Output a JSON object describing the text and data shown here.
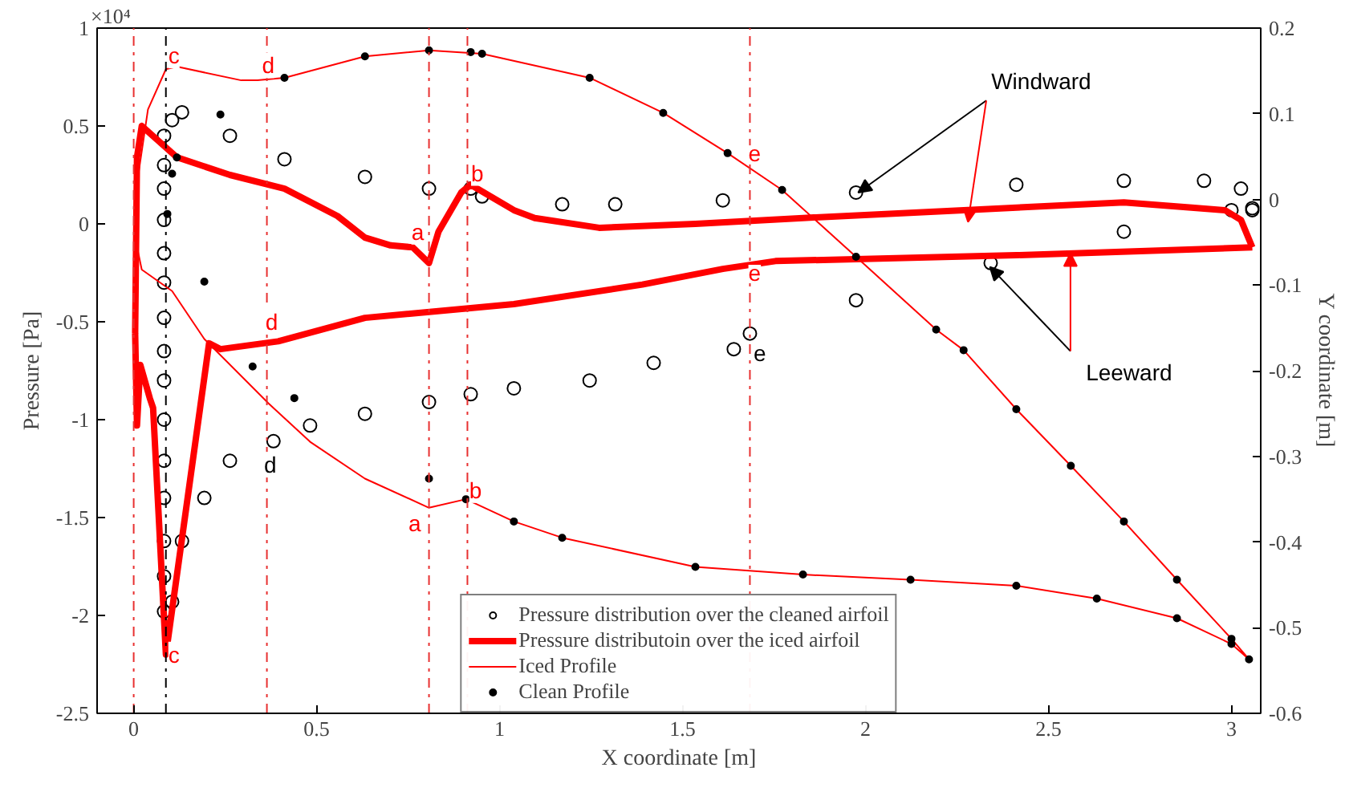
{
  "chart_data": {
    "type": "line",
    "xlabel": "X coordinate [m]",
    "ylabel": "Pressure [Pa]",
    "y2label": "Y coordinate [m]",
    "xlim": [
      -0.1,
      3.08
    ],
    "ylim": [
      -2.5,
      1
    ],
    "y2lim": [
      -0.6,
      0.2
    ],
    "xticks": [
      0,
      0.5,
      1,
      1.5,
      2,
      2.5,
      3
    ],
    "yticks": [
      -2.5,
      -2,
      -1.5,
      -1,
      -0.5,
      0,
      0.5,
      1
    ],
    "y2ticks": [
      -0.6,
      -0.5,
      -0.4,
      -0.3,
      -0.2,
      -0.1,
      0,
      0.1,
      0.2
    ],
    "grid": false,
    "legend": "bottom",
    "series": [
      {
        "name": "Pressure distribution over the cleaned airfoil",
        "type": "scatter",
        "marker": "circle",
        "color": "#000000",
        "x": [
          3.057,
          3.026,
          2.925,
          2.706,
          2.412,
          1.974,
          1.61,
          1.316,
          1.171,
          0.952,
          0.921,
          0.807,
          0.632,
          0.412,
          0.263,
          0.132,
          0.105,
          0.083,
          0.083,
          0.083,
          0.083,
          0.083,
          0.083,
          0.083,
          0.083,
          0.083,
          0.083,
          0.083,
          0.083,
          0.083,
          0.083,
          0.083,
          0.105,
          0.132,
          0.193,
          0.263,
          0.382,
          0.482,
          0.632,
          0.807,
          0.921,
          1.039,
          1.246,
          1.421,
          1.64,
          1.684,
          1.974,
          2.342,
          2.706,
          3.0,
          3.057
        ],
        "values": [
          0.08,
          0.18,
          0.22,
          0.22,
          0.2,
          0.16,
          0.12,
          0.1,
          0.1,
          0.14,
          0.18,
          0.18,
          0.24,
          0.33,
          0.45,
          0.57,
          0.53,
          0.45,
          0.3,
          0.18,
          0.02,
          -0.15,
          -0.3,
          -0.48,
          -0.65,
          -0.8,
          -1.0,
          -1.21,
          -1.4,
          -1.62,
          -1.8,
          -1.98,
          -1.93,
          -1.62,
          -1.4,
          -1.21,
          -1.11,
          -1.03,
          -0.97,
          -0.91,
          -0.87,
          -0.84,
          -0.8,
          -0.71,
          -0.64,
          -0.56,
          -0.39,
          -0.2,
          -0.04,
          0.07,
          0.07
        ]
      },
      {
        "name": "Pressure distributoin over the iced airfoil",
        "color": "#ff0000",
        "x": [
          3.057,
          3.026,
          2.982,
          2.706,
          2.268,
          1.829,
          1.535,
          1.272,
          1.096,
          1.039,
          0.921,
          0.895,
          0.833,
          0.807,
          0.763,
          0.702,
          0.632,
          0.557,
          0.412,
          0.263,
          0.118,
          0.022,
          0.009,
          0.004,
          null,
          0.004,
          0.009,
          0.018,
          0.044,
          0.053,
          0.088,
          0.206,
          0.237,
          0.395,
          0.632,
          1.039,
          1.39,
          1.61,
          1.754,
          2.412,
          3.057
        ],
        "values": [
          -0.12,
          0.02,
          0.07,
          0.11,
          0.07,
          0.03,
          0,
          -0.02,
          0.03,
          0.07,
          0.2,
          0.16,
          -0.04,
          -0.2,
          -0.12,
          -0.11,
          -0.07,
          0.04,
          0.18,
          0.25,
          0.34,
          0.5,
          0.34,
          -0.56,
          null,
          -0.56,
          -1.03,
          -0.72,
          -0.89,
          -0.94,
          -2.2,
          -0.61,
          -0.64,
          -0.6,
          -0.48,
          -0.41,
          -0.31,
          -0.23,
          -0.19,
          -0.16,
          -0.12
        ]
      },
      {
        "name": "Iced Profile",
        "axis": "y2",
        "color": "#ff0000",
        "x": [
          3.048,
          3.0,
          2.851,
          2.706,
          2.561,
          2.412,
          2.268,
          2.193,
          1.974,
          1.772,
          1.623,
          1.447,
          1.246,
          0.952,
          0.807,
          0.632,
          0.412,
          0.338,
          0.294,
          0.118,
          0.088,
          0.039,
          0.013,
          0.004,
          null,
          0.004,
          0.022,
          0.105,
          0.193,
          0.368,
          0.482,
          0.632,
          0.807,
          0.908,
          1.039,
          1.171,
          1.535,
          1.829,
          2.123,
          2.412,
          2.632,
          2.851,
          3.0,
          3.048
        ],
        "values": [
          -0.537,
          -0.513,
          -0.444,
          -0.376,
          -0.311,
          -0.245,
          -0.176,
          -0.152,
          -0.067,
          0.011,
          0.054,
          0.101,
          0.142,
          0.17,
          0.174,
          0.167,
          0.142,
          0.139,
          0.139,
          0.155,
          0.152,
          0.105,
          0.03,
          -0.045,
          null,
          -0.045,
          -0.082,
          -0.107,
          -0.163,
          -0.238,
          -0.283,
          -0.326,
          -0.36,
          -0.35,
          -0.376,
          -0.395,
          -0.429,
          -0.438,
          -0.444,
          -0.451,
          -0.466,
          -0.489,
          -0.519,
          -0.537
        ]
      },
      {
        "name": "Clean Profile",
        "type": "scatter",
        "marker": "circle",
        "axis": "y2",
        "color": "#000000",
        "x": [
          0.092,
          0.105,
          0.118,
          0.237,
          0.412,
          0.632,
          0.807,
          0.921,
          0.952,
          1.246,
          1.447,
          1.623,
          1.772,
          1.974,
          2.193,
          2.268,
          2.412,
          2.561,
          2.706,
          2.851,
          3.0,
          3.048,
          0.193,
          0.325,
          0.439,
          0.807,
          0.908,
          1.039,
          1.171,
          1.535,
          1.829,
          2.123,
          2.412,
          2.632,
          2.851,
          3.0
        ],
        "values": [
          -0.017,
          0.03,
          0.049,
          0.099,
          0.142,
          0.167,
          0.174,
          0.172,
          0.17,
          0.142,
          0.101,
          0.054,
          0.011,
          -0.067,
          -0.152,
          -0.176,
          -0.245,
          -0.311,
          -0.376,
          -0.444,
          -0.513,
          -0.537,
          -0.096,
          -0.195,
          -0.232,
          -0.326,
          -0.35,
          -0.376,
          -0.395,
          -0.429,
          -0.438,
          -0.444,
          -0.451,
          -0.466,
          -0.489,
          -0.519
        ]
      }
    ],
    "ref_lines": [
      {
        "axis": "x",
        "value": 0,
        "color": "#e83030",
        "line_style": "dashdot"
      },
      {
        "axis": "x",
        "value": 0.088,
        "color": "#000000",
        "line_style": "dashdot"
      },
      {
        "axis": "x",
        "value": 0.364,
        "color": "#e83030",
        "line_style": "dashdot"
      },
      {
        "axis": "x",
        "value": 0.807,
        "color": "#e83030",
        "line_style": "dashdot"
      },
      {
        "axis": "x",
        "value": 0.912,
        "color": "#e83030",
        "line_style": "dashdot"
      },
      {
        "axis": "x",
        "value": 1.684,
        "color": "#e83030",
        "line_style": "dashdot"
      }
    ],
    "annotations": [
      "×10⁴",
      {
        "text": "Windward",
        "x": 1.98,
        "y": 0.16
      },
      {
        "text": "Leeward",
        "x": 2.34,
        "y": -0.22
      },
      "c",
      "d",
      "a",
      "b",
      "a",
      "b",
      "c",
      "d",
      "e",
      "e",
      "d",
      "e"
    ]
  }
}
